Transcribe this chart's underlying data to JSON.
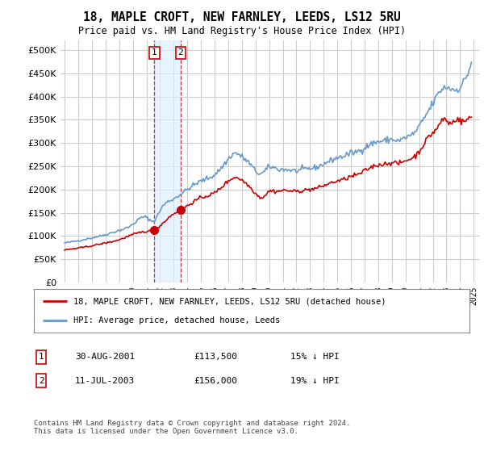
{
  "title": "18, MAPLE CROFT, NEW FARNLEY, LEEDS, LS12 5RU",
  "subtitle": "Price paid vs. HM Land Registry's House Price Index (HPI)",
  "legend_line1": "18, MAPLE CROFT, NEW FARNLEY, LEEDS, LS12 5RU (detached house)",
  "legend_line2": "HPI: Average price, detached house, Leeds",
  "transaction1_date": "30-AUG-2001",
  "transaction1_price": 113500,
  "transaction1_pct": "15% ↓ HPI",
  "transaction2_date": "11-JUL-2003",
  "transaction2_price": 156000,
  "transaction2_pct": "19% ↓ HPI",
  "footer": "Contains HM Land Registry data © Crown copyright and database right 2024.\nThis data is licensed under the Open Government Licence v3.0.",
  "red_color": "#cc0000",
  "blue_color": "#6699cc",
  "shading_color": "#ddeeff",
  "ylim": [
    0,
    520000
  ],
  "yticks": [
    0,
    50000,
    100000,
    150000,
    200000,
    250000,
    300000,
    350000,
    400000,
    450000,
    500000
  ],
  "background_color": "#ffffff",
  "grid_color": "#cccccc",
  "t1_year": 2001.583,
  "t1_price": 113500,
  "t2_year": 2003.5,
  "t2_price": 156000
}
